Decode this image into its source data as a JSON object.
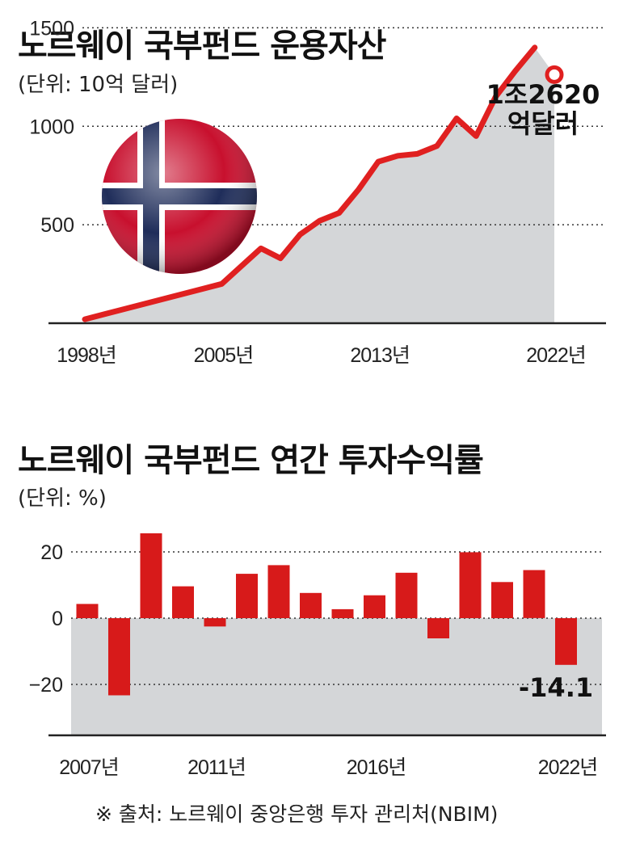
{
  "chart_data": [
    {
      "type": "area",
      "title": "노르웨이 국부펀드 운용자산",
      "unit_label": "(단위: 10억 달러)",
      "yticks": [
        500,
        1000,
        1500
      ],
      "ylim": [
        0,
        1600
      ],
      "x_tick_labels": [
        "1998년",
        "2005년",
        "2013년",
        "2022년"
      ],
      "x_tick_years": [
        1998,
        2005,
        2013,
        2022
      ],
      "x": [
        1998,
        2005,
        2006,
        2007,
        2008,
        2009,
        2010,
        2011,
        2012,
        2013,
        2014,
        2015,
        2016,
        2017,
        2018,
        2019,
        2020,
        2021,
        2022
      ],
      "values": [
        20,
        200,
        290,
        380,
        330,
        450,
        520,
        560,
        680,
        820,
        850,
        860,
        900,
        1040,
        950,
        1150,
        1280,
        1400,
        1262
      ],
      "annotation": "1조2620\n억달러",
      "line_color": "#e02020",
      "fill_color": "#d4d6d8",
      "grid": true
    },
    {
      "type": "bar",
      "title": "노르웨이 국부펀드 연간 투자수익률",
      "unit_label": "(단위: %)",
      "yticks": [
        20,
        0,
        -20
      ],
      "ylim": [
        -35,
        27
      ],
      "x_tick_labels": [
        "2007년",
        "2011년",
        "2016년",
        "2022년"
      ],
      "x_tick_years": [
        2007,
        2011,
        2016,
        2022
      ],
      "categories": [
        2007,
        2008,
        2009,
        2010,
        2011,
        2012,
        2013,
        2014,
        2015,
        2016,
        2017,
        2018,
        2019,
        2020,
        2021,
        2022
      ],
      "values": [
        4.3,
        -23.3,
        25.6,
        9.6,
        -2.5,
        13.4,
        16.0,
        7.6,
        2.7,
        6.9,
        13.7,
        -6.1,
        19.9,
        10.9,
        14.5,
        -14.1
      ],
      "annotation": "-14.1",
      "bar_color": "#d71a1a",
      "fill_color": "#d4d6d8",
      "grid": true
    }
  ],
  "source": "※ 출처: 노르웨이 중앙은행 투자 관리처(NBIM)",
  "flag_icon": "norway-flag-icon"
}
